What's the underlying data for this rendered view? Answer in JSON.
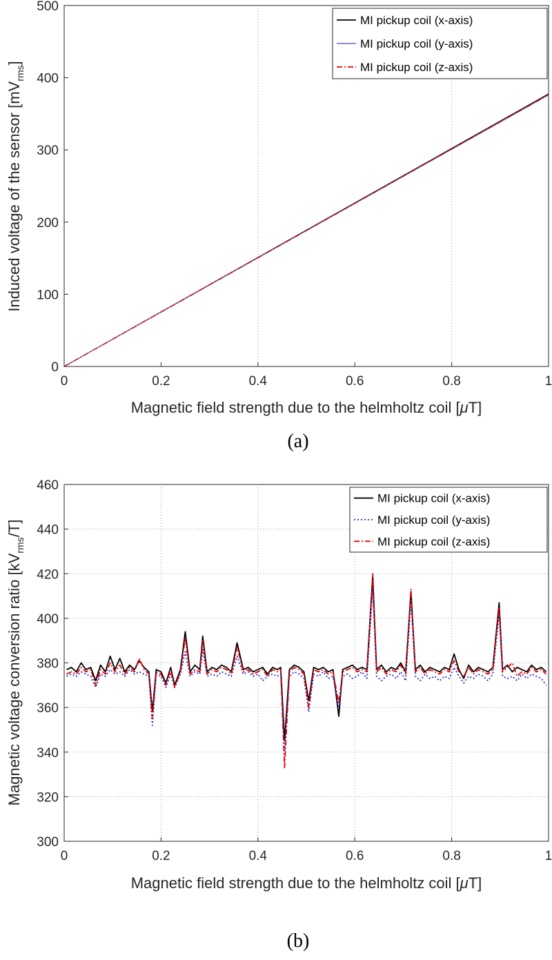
{
  "panels": [
    {
      "caption": "(a)",
      "xlabel_main": "Magnetic field strength due to the helmholtz coil [",
      "xlabel_greek": "μ",
      "xlabel_unit": "T]",
      "ylabel_main": "Induced voltage of the sensor [mV",
      "ylabel_sub": "rms",
      "ylabel_end": "]",
      "x_ticks": [
        "0",
        "0.2",
        "0.4",
        "0.6",
        "0.8",
        "1"
      ],
      "y_ticks": [
        "0",
        "100",
        "200",
        "300",
        "400",
        "500"
      ],
      "legend": [
        "MI pickup coil (x-axis)",
        "MI pickup coil (y-axis)",
        "MI pickup coil (z-axis)"
      ]
    },
    {
      "caption": "(b)",
      "xlabel_main": "Magnetic field strength due to the helmholtz coil [",
      "xlabel_greek": "μ",
      "xlabel_unit": "T]",
      "ylabel_main": "Magnetic voltage conversion ratio [kV",
      "ylabel_sub": "rms",
      "ylabel_end": "/T]",
      "x_ticks": [
        "0",
        "0.2",
        "0.4",
        "0.6",
        "0.8",
        "1"
      ],
      "y_ticks": [
        "300",
        "320",
        "340",
        "360",
        "380",
        "400",
        "420",
        "440",
        "460"
      ],
      "legend": [
        "MI pickup coil (x-axis)",
        "MI pickup coil (y-axis)",
        "MI pickup coil (z-axis)"
      ]
    }
  ],
  "chart_data": [
    {
      "type": "line",
      "xlim": [
        0,
        1
      ],
      "ylim": [
        0,
        500
      ],
      "grid": "x-only (vertical dotted lines at 0.4 and 0.8)",
      "legend_position": "top-right",
      "series": [
        {
          "name": "MI pickup coil (x-axis)",
          "color": "#000000",
          "style": "solid",
          "x": [
            0,
            0.2,
            0.4,
            0.6,
            0.8,
            1.0
          ],
          "values": [
            0,
            75.5,
            151,
            226.5,
            302,
            377.5
          ]
        },
        {
          "name": "MI pickup coil (y-axis)",
          "color": "#7b7bd8",
          "style": "solid",
          "x": [
            0,
            0.2,
            0.4,
            0.6,
            0.8,
            1.0
          ],
          "values": [
            0,
            75.2,
            150.4,
            225.6,
            300.8,
            376
          ]
        },
        {
          "name": "MI pickup coil (z-axis)",
          "color": "#e00000",
          "style": "dash-dot",
          "x": [
            0,
            0.2,
            0.4,
            0.6,
            0.8,
            1.0
          ],
          "values": [
            0,
            75.3,
            150.6,
            225.9,
            301.2,
            376.5
          ]
        }
      ]
    },
    {
      "type": "line",
      "xlim": [
        0,
        1
      ],
      "ylim": [
        300,
        460
      ],
      "grid": "on (dotted)",
      "legend_position": "top-right",
      "x": [
        0.005,
        0.015,
        0.025,
        0.035,
        0.045,
        0.055,
        0.065,
        0.075,
        0.085,
        0.095,
        0.105,
        0.115,
        0.125,
        0.135,
        0.145,
        0.155,
        0.165,
        0.175,
        0.182,
        0.19,
        0.2,
        0.21,
        0.22,
        0.228,
        0.24,
        0.25,
        0.26,
        0.27,
        0.28,
        0.286,
        0.295,
        0.305,
        0.315,
        0.325,
        0.335,
        0.345,
        0.357,
        0.37,
        0.38,
        0.39,
        0.4,
        0.41,
        0.42,
        0.43,
        0.44,
        0.447,
        0.455,
        0.465,
        0.475,
        0.485,
        0.495,
        0.505,
        0.515,
        0.525,
        0.535,
        0.545,
        0.555,
        0.567,
        0.575,
        0.585,
        0.595,
        0.605,
        0.615,
        0.625,
        0.637,
        0.645,
        0.655,
        0.665,
        0.675,
        0.685,
        0.695,
        0.705,
        0.716,
        0.725,
        0.735,
        0.745,
        0.755,
        0.765,
        0.775,
        0.785,
        0.795,
        0.805,
        0.815,
        0.825,
        0.835,
        0.845,
        0.855,
        0.865,
        0.875,
        0.885,
        0.898,
        0.905,
        0.915,
        0.925,
        0.935,
        0.945,
        0.955,
        0.965,
        0.975,
        0.985,
        0.995
      ],
      "series": [
        {
          "name": "MI pickup coil (x-axis)",
          "color": "#000000",
          "style": "solid",
          "values": [
            377,
            378,
            376,
            380,
            377,
            378,
            372,
            379,
            376,
            383,
            377,
            382,
            376,
            379,
            377,
            381,
            378,
            376,
            358,
            377,
            376,
            371,
            378,
            370,
            377,
            394,
            376,
            379,
            377,
            392,
            376,
            378,
            377,
            379,
            378,
            376,
            389,
            377,
            378,
            376,
            377,
            378,
            375,
            378,
            377,
            378,
            345,
            377,
            379,
            378,
            376,
            363,
            378,
            377,
            378,
            376,
            377,
            356,
            377,
            378,
            379,
            377,
            378,
            377,
            419,
            377,
            379,
            376,
            378,
            377,
            380,
            376,
            412,
            377,
            379,
            376,
            378,
            377,
            376,
            378,
            377,
            384,
            377,
            373,
            379,
            376,
            378,
            377,
            376,
            378,
            407,
            377,
            379,
            376,
            378,
            377,
            376,
            379,
            377,
            378,
            376
          ]
        },
        {
          "name": "MI pickup coil (y-axis)",
          "color": "#1e2cc8",
          "style": "dotted",
          "values": [
            374,
            375,
            374,
            376,
            375,
            374,
            369,
            375,
            374,
            377,
            375,
            376,
            374,
            377,
            375,
            376,
            375,
            374,
            352,
            375,
            374,
            369,
            375,
            369,
            375,
            385,
            374,
            376,
            375,
            386,
            374,
            375,
            374,
            376,
            375,
            374,
            383,
            375,
            376,
            374,
            375,
            372,
            374,
            375,
            374,
            375,
            340,
            374,
            376,
            375,
            373,
            358,
            375,
            374,
            376,
            373,
            374,
            360,
            374,
            375,
            373,
            374,
            376,
            373,
            413,
            374,
            372,
            374,
            375,
            373,
            376,
            372,
            408,
            374,
            372,
            375,
            373,
            374,
            372,
            374,
            373,
            378,
            374,
            371,
            374,
            373,
            375,
            374,
            372,
            375,
            402,
            374,
            373,
            374,
            372,
            375,
            373,
            375,
            374,
            373,
            370
          ]
        },
        {
          "name": "MI pickup coil (z-axis)",
          "color": "#e60000",
          "style": "dash-dot",
          "values": [
            375,
            376,
            375,
            378,
            376,
            377,
            370,
            377,
            375,
            380,
            376,
            379,
            375,
            378,
            376,
            382,
            377,
            375,
            355,
            376,
            375,
            370,
            377,
            369,
            376,
            391,
            375,
            377,
            376,
            390,
            375,
            377,
            376,
            378,
            377,
            375,
            387,
            376,
            377,
            375,
            376,
            377,
            374,
            377,
            376,
            377,
            333,
            376,
            378,
            377,
            375,
            360,
            377,
            376,
            377,
            375,
            376,
            362,
            376,
            377,
            378,
            376,
            377,
            376,
            420,
            376,
            378,
            375,
            377,
            376,
            379,
            375,
            413,
            376,
            378,
            375,
            377,
            376,
            375,
            377,
            376,
            381,
            376,
            374,
            378,
            375,
            377,
            376,
            375,
            377,
            405,
            376,
            378,
            380,
            374,
            376,
            375,
            378,
            376,
            377,
            375
          ]
        }
      ]
    }
  ]
}
